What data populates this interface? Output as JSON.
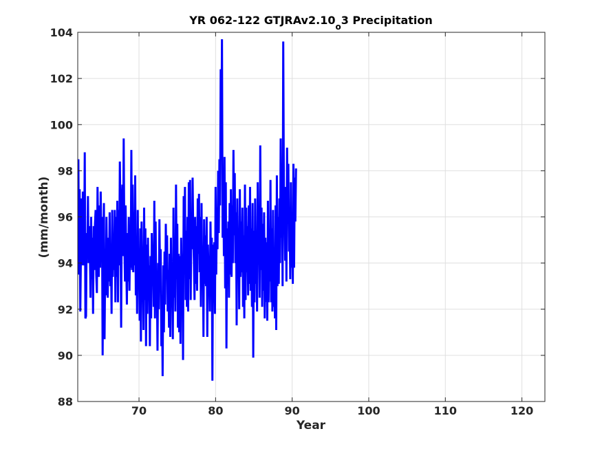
{
  "chart_data": {
    "type": "line",
    "title_main": "YR 062-122 GTJRAv2.10",
    "title_subscript": "o",
    "title_tail": "3 Precipitation",
    "xlabel": "Year",
    "ylabel": "(mm/month)",
    "xlim": [
      62,
      123
    ],
    "ylim": [
      88,
      104
    ],
    "xticks": [
      70,
      80,
      90,
      100,
      110,
      120
    ],
    "yticks": [
      88,
      90,
      92,
      94,
      96,
      98,
      100,
      102,
      104
    ],
    "grid": true,
    "series_color": "#0000ff",
    "x_start": 62,
    "samples_per_year": 12,
    "series": [
      {
        "values": [
          94.8,
          98.5,
          93.5,
          97.2,
          91.9,
          94.4,
          96.8,
          93.9,
          97.1,
          93.9,
          94.3,
          98.8,
          91.6,
          91.7,
          95.3,
          94.3,
          96.9,
          94.0,
          95.6,
          94.6,
          92.5,
          96.0,
          93.3,
          95.1,
          91.8,
          95.6,
          93.7,
          95.7,
          96.3,
          93.5,
          92.7,
          97.3,
          95.4,
          93.4,
          96.5,
          93.8,
          97.1,
          94.5,
          96.0,
          90.0,
          94.3,
          96.6,
          90.7,
          93.9,
          92.6,
          96.0,
          93.4,
          92.5,
          95.1,
          93.2,
          96.2,
          93.0,
          94.5,
          91.8,
          96.3,
          93.4,
          95.2,
          93.7,
          96.3,
          92.3,
          96.0,
          93.4,
          96.7,
          92.3,
          96.3,
          93.9,
          98.4,
          96.0,
          91.2,
          96.5,
          97.4,
          94.3,
          99.4,
          95.0,
          93.2,
          96.5,
          94.1,
          92.2,
          95.3,
          93.2,
          96.0,
          92.8,
          95.0,
          93.8,
          98.9,
          93.7,
          97.4,
          93.6,
          96.2,
          93.9,
          97.8,
          92.6,
          95.1,
          91.8,
          96.3,
          93.2,
          94.2,
          91.5,
          95.5,
          90.6,
          95.8,
          93.2,
          94.0,
          91.1,
          96.4,
          92.4,
          95.5,
          90.4,
          94.8,
          91.8,
          95.1,
          92.6,
          93.9,
          90.4,
          94.3,
          91.6,
          95.3,
          93.7,
          94.6,
          92.1,
          96.7,
          91.6,
          95.8,
          92.6,
          93.2,
          90.2,
          94.0,
          92.0,
          95.9,
          93.3,
          94.6,
          90.4,
          92.6,
          89.1,
          93.9,
          91.0,
          94.5,
          92.2,
          95.7,
          93.3,
          95.2,
          91.9,
          93.7,
          91.2,
          94.4,
          90.8,
          95.1,
          92.2,
          93.8,
          90.7,
          96.4,
          92.5,
          94.5,
          91.9,
          97.4,
          93.3,
          95.7,
          91.2,
          94.4,
          91.0,
          94.3,
          90.5,
          95.1,
          93.2,
          93.8,
          89.8,
          96.9,
          93.8,
          97.3,
          92.4,
          95.4,
          92.1,
          96.0,
          91.9,
          97.5,
          93.3,
          97.6,
          92.4,
          96.2,
          94.6,
          97.7,
          95.2,
          94.1,
          92.4,
          96.0,
          93.1,
          95.6,
          92.8,
          96.8,
          94.4,
          97.0,
          93.6,
          96.0,
          92.1,
          96.6,
          93.0,
          94.7,
          90.8,
          95.9,
          93.1,
          95.2,
          93.0,
          96.0,
          90.8,
          94.8,
          93.4,
          94.1,
          91.9,
          95.8,
          93.5,
          95.1,
          88.9,
          94.8,
          92.3,
          94.9,
          91.8,
          97.3,
          93.5,
          96.4,
          94.6,
          98.0,
          95.3,
          98.5,
          96.5,
          102.4,
          98.7,
          103.7,
          95.1,
          97.9,
          94.3,
          98.6,
          92.9,
          97.5,
          90.3,
          95.5,
          93.1,
          95.8,
          92.5,
          96.6,
          93.5,
          97.2,
          93.4,
          96.5,
          94.0,
          98.9,
          95.2,
          97.9,
          94.0,
          96.2,
          91.3,
          96.8,
          93.8,
          95.5,
          92.0,
          97.2,
          93.4,
          95.8,
          93.6,
          96.4,
          92.1,
          95.2,
          91.6,
          97.4,
          92.4,
          96.4,
          93.6,
          95.6,
          92.6,
          96.5,
          93.1,
          97.3,
          92.8,
          95.5,
          92.1,
          96.6,
          89.9,
          95.4,
          92.3,
          96.8,
          93.1,
          95.4,
          91.9,
          97.5,
          94.6,
          96.3,
          92.5,
          99.1,
          93.7,
          96.4,
          92.1,
          95.7,
          92.8,
          96.2,
          91.6,
          95.1,
          92.3,
          94.9,
          91.5,
          96.7,
          92.3,
          95.1,
          93.2,
          97.6,
          92.3,
          95.5,
          91.9,
          96.3,
          92.1,
          94.3,
          91.6,
          96.5,
          91.1,
          97.8,
          93.0,
          96.0,
          93.1,
          96.8,
          94.0,
          99.4,
          95.1,
          97.4,
          93.0,
          103.6,
          97.2,
          96.2,
          94.1,
          97.3,
          93.2,
          99.0,
          95.7,
          98.3,
          94.5,
          96.1,
          93.3,
          97.5,
          93.8,
          95.6,
          93.1,
          98.3,
          93.8,
          97.7,
          95.8,
          98.1
        ]
      }
    ]
  }
}
